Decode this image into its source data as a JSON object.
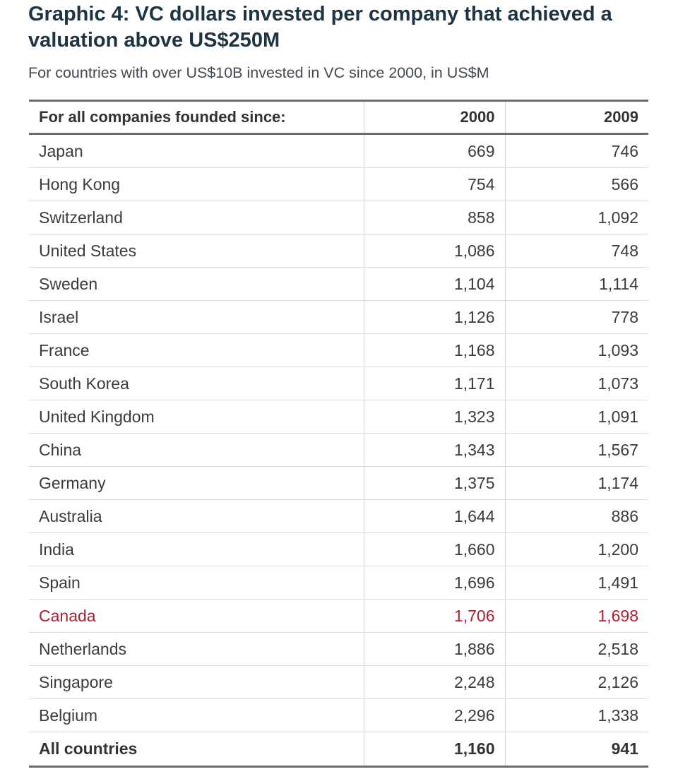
{
  "title": "Graphic 4: VC dollars invested per company that achieved a valuation above US$250M",
  "subtitle": "For countries with over US$10B invested in VC since 2000, in US$M",
  "colors": {
    "title": "#1f3443",
    "highlight": "#b01e33",
    "rule": "#6b6b6b"
  },
  "chart_data": {
    "type": "table",
    "columns": [
      "For all companies founded since:",
      "2000",
      "2009"
    ],
    "rows": [
      {
        "country": "Japan",
        "v2000": "669",
        "v2009": "746"
      },
      {
        "country": "Hong Kong",
        "v2000": "754",
        "v2009": "566"
      },
      {
        "country": "Switzerland",
        "v2000": "858",
        "v2009": "1,092"
      },
      {
        "country": "United States",
        "v2000": "1,086",
        "v2009": "748"
      },
      {
        "country": "Sweden",
        "v2000": "1,104",
        "v2009": "1,114"
      },
      {
        "country": "Israel",
        "v2000": "1,126",
        "v2009": "778"
      },
      {
        "country": "France",
        "v2000": "1,168",
        "v2009": "1,093"
      },
      {
        "country": "South Korea",
        "v2000": "1,171",
        "v2009": "1,073"
      },
      {
        "country": "United Kingdom",
        "v2000": "1,323",
        "v2009": "1,091"
      },
      {
        "country": "China",
        "v2000": "1,343",
        "v2009": "1,567"
      },
      {
        "country": "Germany",
        "v2000": "1,375",
        "v2009": "1,174"
      },
      {
        "country": "Australia",
        "v2000": "1,644",
        "v2009": "886"
      },
      {
        "country": "India",
        "v2000": "1,660",
        "v2009": "1,200"
      },
      {
        "country": "Spain",
        "v2000": "1,696",
        "v2009": "1,491"
      },
      {
        "country": "Canada",
        "v2000": "1,706",
        "v2009": "1,698",
        "highlight": true
      },
      {
        "country": "Netherlands",
        "v2000": "1,886",
        "v2009": "2,518"
      },
      {
        "country": "Singapore",
        "v2000": "2,248",
        "v2009": "2,126"
      },
      {
        "country": "Belgium",
        "v2000": "2,296",
        "v2009": "1,338"
      }
    ],
    "total": {
      "country": "All countries",
      "v2000": "1,160",
      "v2009": "941"
    }
  }
}
